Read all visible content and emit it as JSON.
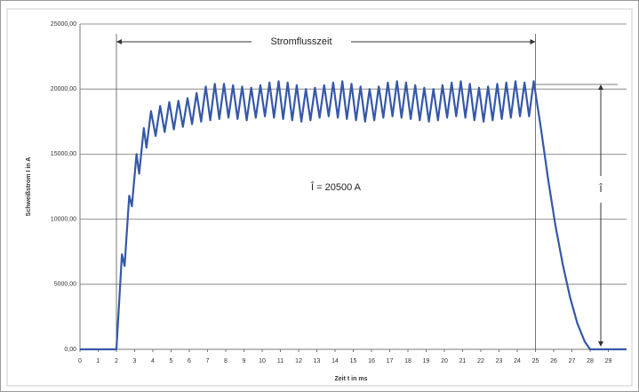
{
  "chart_data": {
    "type": "line",
    "y_label": "Schweißstrom I in A",
    "x_label": "Zeit t in ms",
    "annotations": [
      "Stromflusszeit",
      "Î = 20500 A",
      "Î"
    ],
    "x": [
      0,
      2,
      2.3,
      2.45,
      2.7,
      2.85,
      3.1,
      3.25,
      3.5,
      3.65,
      3.9,
      4.15,
      4.4,
      4.65,
      4.9,
      5.15,
      5.4,
      5.65,
      5.9,
      6.15,
      6.4,
      6.65,
      6.9,
      7.15,
      7.4,
      7.65,
      7.9,
      8.15,
      8.4,
      8.65,
      8.9,
      9.15,
      9.4,
      9.65,
      9.9,
      10.15,
      10.4,
      10.65,
      10.9,
      11.15,
      11.4,
      11.65,
      11.9,
      12.15,
      12.4,
      12.65,
      12.9,
      13.15,
      13.4,
      13.65,
      13.9,
      14.15,
      14.4,
      14.65,
      14.9,
      15.15,
      15.4,
      15.65,
      15.9,
      16.15,
      16.4,
      16.65,
      16.9,
      17.15,
      17.4,
      17.65,
      17.9,
      18.15,
      18.4,
      18.65,
      18.9,
      19.15,
      19.4,
      19.65,
      19.9,
      20.15,
      20.4,
      20.65,
      20.9,
      21.15,
      21.4,
      21.65,
      21.9,
      22.15,
      22.4,
      22.65,
      22.9,
      23.15,
      23.4,
      23.65,
      23.9,
      24.15,
      24.4,
      24.65,
      24.9,
      25.3,
      25.7,
      26.1,
      26.5,
      26.9,
      27.3,
      27.7,
      28,
      30
    ],
    "series": [
      {
        "color": "#3558a8",
        "values": [
          0,
          0,
          7300,
          6400,
          11800,
          11000,
          15000,
          13500,
          17000,
          15500,
          18300,
          16400,
          18700,
          16700,
          19000,
          16900,
          19100,
          17100,
          19300,
          17300,
          19700,
          17500,
          20200,
          17600,
          20400,
          17700,
          20400,
          17800,
          20300,
          17700,
          20200,
          17600,
          20100,
          17800,
          20300,
          17900,
          20500,
          17800,
          20600,
          17700,
          20500,
          17600,
          20300,
          17500,
          20000,
          17600,
          20100,
          17800,
          20300,
          17900,
          20500,
          17800,
          20600,
          17700,
          20400,
          17600,
          20200,
          17500,
          20000,
          17600,
          20200,
          17800,
          20500,
          17900,
          20600,
          17800,
          20500,
          17700,
          20300,
          17600,
          20100,
          17500,
          20000,
          17600,
          20300,
          17800,
          20500,
          17900,
          20600,
          17800,
          20400,
          17600,
          20100,
          17500,
          20200,
          17600,
          20400,
          17700,
          20500,
          17800,
          20600,
          17900,
          20500,
          17900,
          20600,
          17000,
          13000,
          9500,
          6500,
          4000,
          2000,
          600,
          0,
          0
        ]
      }
    ],
    "xlim": [
      0,
      30
    ],
    "xticks": [
      0,
      1,
      2,
      3,
      4,
      5,
      6,
      7,
      8,
      9,
      10,
      11,
      12,
      13,
      14,
      15,
      16,
      17,
      18,
      19,
      20,
      21,
      22,
      23,
      24,
      25,
      26,
      27,
      28,
      29
    ],
    "ylim": [
      0,
      25000
    ],
    "yticks": [
      {
        "value": 0,
        "label": "0,00"
      },
      {
        "value": 5000,
        "label": "5000,00"
      },
      {
        "value": 10000,
        "label": "10000,00"
      },
      {
        "value": 15000,
        "label": "15000,00"
      },
      {
        "value": 20000,
        "label": "20000,00"
      },
      {
        "value": 25000,
        "label": "25000,00"
      }
    ],
    "grid": true
  }
}
